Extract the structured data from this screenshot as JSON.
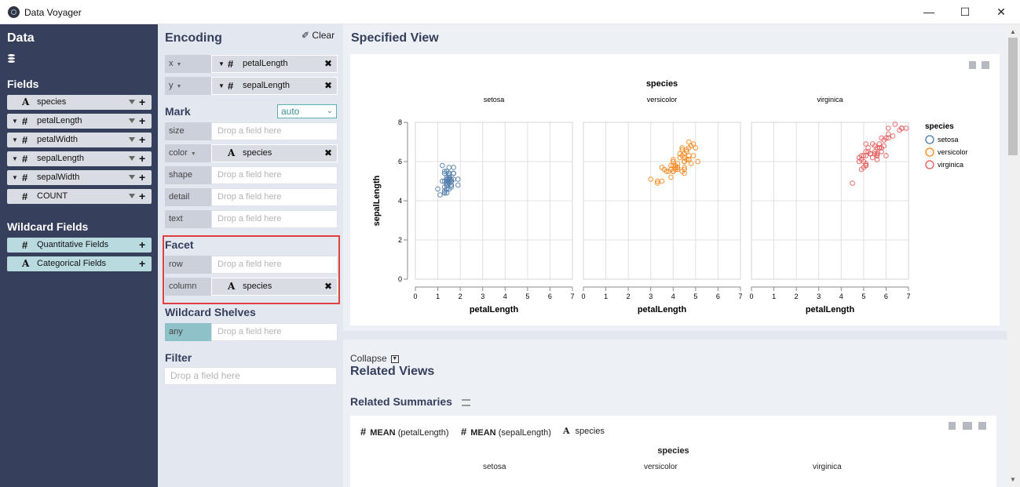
{
  "window": {
    "title": "Data Voyager",
    "minimize": "—",
    "maximize": "☐",
    "close": "✕"
  },
  "data_panel": {
    "title": "Data",
    "fields_heading": "Fields",
    "fields": [
      {
        "type": "A",
        "name": "species",
        "caret": false
      },
      {
        "type": "#",
        "name": "petalLength",
        "caret": true
      },
      {
        "type": "#",
        "name": "petalWidth",
        "caret": true
      },
      {
        "type": "#",
        "name": "sepalLength",
        "caret": true
      },
      {
        "type": "#",
        "name": "sepalWidth",
        "caret": true
      },
      {
        "type": "#",
        "name": "COUNT",
        "caret": false
      }
    ],
    "wildcard_heading": "Wildcard Fields",
    "wildcard_fields": [
      {
        "type": "#",
        "name": "Quantitative Fields"
      },
      {
        "type": "A",
        "name": "Categorical Fields"
      }
    ]
  },
  "encoding": {
    "title": "Encoding",
    "clear_label": "Clear",
    "x": {
      "label": "x",
      "type": "#",
      "field": "petalLength"
    },
    "y": {
      "label": "y",
      "type": "#",
      "field": "sepalLength"
    },
    "mark_heading": "Mark",
    "mark_value": "auto",
    "placeholder": "Drop a field here",
    "size_label": "size",
    "color": {
      "label": "color",
      "type": "A",
      "field": "species"
    },
    "shape_label": "shape",
    "detail_label": "detail",
    "text_label": "text",
    "facet_heading": "Facet",
    "row_label": "row",
    "column": {
      "label": "column",
      "type": "A",
      "field": "species"
    },
    "wildcard_heading": "Wildcard Shelves",
    "any_label": "any",
    "filter_heading": "Filter"
  },
  "main": {
    "specified_title": "Specified View",
    "collapse_label": "Collapse",
    "related_views_title": "Related Views",
    "related_summaries_title": "Related Summaries",
    "summary_fields": [
      {
        "type": "#",
        "agg": "MEAN",
        "field": "(petalLength)"
      },
      {
        "type": "#",
        "agg": "MEAN",
        "field": "(sepalLength)"
      },
      {
        "type": "A",
        "agg": "",
        "field": "species"
      }
    ],
    "summary_facet_title": "species",
    "summary_facets": [
      "setosa",
      "versicolor",
      "virginica"
    ]
  },
  "chart_data": {
    "type": "scatter",
    "facet_title": "species",
    "facets": [
      "setosa",
      "versicolor",
      "virginica"
    ],
    "xlabel": "petalLength",
    "ylabel": "sepalLength",
    "xlim": [
      0,
      7
    ],
    "ylim": [
      0,
      8
    ],
    "xticks": [
      "0",
      "1",
      "2",
      "3",
      "4",
      "5",
      "6",
      "7"
    ],
    "yticks": [
      "0",
      "2",
      "4",
      "6",
      "8"
    ],
    "grid": true,
    "legend": {
      "title": "species",
      "position": "right",
      "items": [
        "setosa",
        "versicolor",
        "virginica"
      ]
    },
    "colors": {
      "setosa": "#4c78a8",
      "versicolor": "#f58518",
      "virginica": "#e45756"
    },
    "series": [
      {
        "name": "setosa",
        "points": [
          [
            1.4,
            5.1
          ],
          [
            1.4,
            4.9
          ],
          [
            1.3,
            4.7
          ],
          [
            1.5,
            4.6
          ],
          [
            1.4,
            5.0
          ],
          [
            1.7,
            5.4
          ],
          [
            1.4,
            4.6
          ],
          [
            1.5,
            5.0
          ],
          [
            1.4,
            4.4
          ],
          [
            1.5,
            4.9
          ],
          [
            1.5,
            5.4
          ],
          [
            1.6,
            4.8
          ],
          [
            1.4,
            4.8
          ],
          [
            1.1,
            4.3
          ],
          [
            1.2,
            5.8
          ],
          [
            1.5,
            5.7
          ],
          [
            1.3,
            5.4
          ],
          [
            1.4,
            5.1
          ],
          [
            1.7,
            5.7
          ],
          [
            1.5,
            5.1
          ],
          [
            1.7,
            5.4
          ],
          [
            1.5,
            5.1
          ],
          [
            1.0,
            4.6
          ],
          [
            1.7,
            5.1
          ],
          [
            1.9,
            4.8
          ],
          [
            1.6,
            5.0
          ],
          [
            1.6,
            5.0
          ],
          [
            1.5,
            5.2
          ],
          [
            1.4,
            5.2
          ],
          [
            1.6,
            4.7
          ],
          [
            1.6,
            4.8
          ],
          [
            1.5,
            5.4
          ],
          [
            1.5,
            5.2
          ],
          [
            1.4,
            5.5
          ],
          [
            1.5,
            4.9
          ],
          [
            1.2,
            5.0
          ],
          [
            1.3,
            5.5
          ],
          [
            1.4,
            4.9
          ],
          [
            1.3,
            4.4
          ],
          [
            1.5,
            5.1
          ],
          [
            1.3,
            5.0
          ],
          [
            1.3,
            4.5
          ],
          [
            1.3,
            4.4
          ],
          [
            1.6,
            5.0
          ],
          [
            1.9,
            5.1
          ],
          [
            1.4,
            4.8
          ],
          [
            1.6,
            5.1
          ],
          [
            1.4,
            4.6
          ],
          [
            1.5,
            5.3
          ],
          [
            1.4,
            5.0
          ]
        ]
      },
      {
        "name": "versicolor",
        "points": [
          [
            4.7,
            7.0
          ],
          [
            4.5,
            6.4
          ],
          [
            4.9,
            6.9
          ],
          [
            4.0,
            5.5
          ],
          [
            4.6,
            6.5
          ],
          [
            4.5,
            5.7
          ],
          [
            4.7,
            6.3
          ],
          [
            3.3,
            4.9
          ],
          [
            4.6,
            6.6
          ],
          [
            3.9,
            5.2
          ],
          [
            3.5,
            5.0
          ],
          [
            4.2,
            5.9
          ],
          [
            4.0,
            6.0
          ],
          [
            4.7,
            6.1
          ],
          [
            3.6,
            5.6
          ],
          [
            4.4,
            6.7
          ],
          [
            4.5,
            5.6
          ],
          [
            4.1,
            5.8
          ],
          [
            4.5,
            6.2
          ],
          [
            3.9,
            5.6
          ],
          [
            4.8,
            5.9
          ],
          [
            4.0,
            6.1
          ],
          [
            4.9,
            6.3
          ],
          [
            4.7,
            6.1
          ],
          [
            4.3,
            6.4
          ],
          [
            4.4,
            6.6
          ],
          [
            4.8,
            6.8
          ],
          [
            5.0,
            6.7
          ],
          [
            4.5,
            6.0
          ],
          [
            3.5,
            5.7
          ],
          [
            3.8,
            5.5
          ],
          [
            3.7,
            5.5
          ],
          [
            3.9,
            5.8
          ],
          [
            5.1,
            6.0
          ],
          [
            4.5,
            5.4
          ],
          [
            4.5,
            6.0
          ],
          [
            4.7,
            6.7
          ],
          [
            4.4,
            6.3
          ],
          [
            4.1,
            5.6
          ],
          [
            4.0,
            5.5
          ],
          [
            4.4,
            5.5
          ],
          [
            4.6,
            6.1
          ],
          [
            4.0,
            5.8
          ],
          [
            3.3,
            5.0
          ],
          [
            4.2,
            5.6
          ],
          [
            4.2,
            5.7
          ],
          [
            4.2,
            5.7
          ],
          [
            4.3,
            6.2
          ],
          [
            3.0,
            5.1
          ],
          [
            4.1,
            5.7
          ]
        ]
      },
      {
        "name": "virginica",
        "points": [
          [
            6.0,
            6.3
          ],
          [
            5.1,
            5.8
          ],
          [
            5.9,
            7.1
          ],
          [
            5.6,
            6.3
          ],
          [
            5.8,
            6.5
          ],
          [
            6.6,
            7.6
          ],
          [
            4.5,
            4.9
          ],
          [
            6.3,
            7.3
          ],
          [
            5.8,
            6.7
          ],
          [
            6.1,
            7.2
          ],
          [
            5.1,
            6.5
          ],
          [
            5.3,
            6.4
          ],
          [
            5.5,
            6.8
          ],
          [
            5.0,
            5.7
          ],
          [
            5.1,
            5.8
          ],
          [
            5.3,
            6.4
          ],
          [
            5.5,
            6.5
          ],
          [
            6.7,
            7.7
          ],
          [
            6.9,
            7.7
          ],
          [
            5.0,
            6.0
          ],
          [
            5.7,
            6.9
          ],
          [
            4.9,
            5.6
          ],
          [
            6.7,
            7.7
          ],
          [
            4.9,
            6.3
          ],
          [
            5.7,
            6.7
          ],
          [
            6.0,
            7.2
          ],
          [
            4.8,
            6.2
          ],
          [
            4.9,
            6.1
          ],
          [
            5.6,
            6.4
          ],
          [
            5.8,
            7.2
          ],
          [
            6.1,
            7.4
          ],
          [
            6.4,
            7.9
          ],
          [
            5.6,
            6.4
          ],
          [
            5.1,
            6.3
          ],
          [
            5.6,
            6.1
          ],
          [
            6.1,
            7.7
          ],
          [
            5.6,
            6.3
          ],
          [
            5.5,
            6.4
          ],
          [
            4.8,
            6.0
          ],
          [
            5.4,
            6.9
          ],
          [
            5.6,
            6.7
          ],
          [
            5.1,
            6.9
          ],
          [
            5.1,
            5.8
          ],
          [
            5.9,
            6.8
          ],
          [
            5.7,
            6.7
          ],
          [
            5.2,
            6.7
          ],
          [
            5.0,
            6.3
          ],
          [
            5.2,
            6.5
          ],
          [
            5.4,
            6.2
          ],
          [
            5.1,
            5.9
          ]
        ]
      }
    ]
  }
}
